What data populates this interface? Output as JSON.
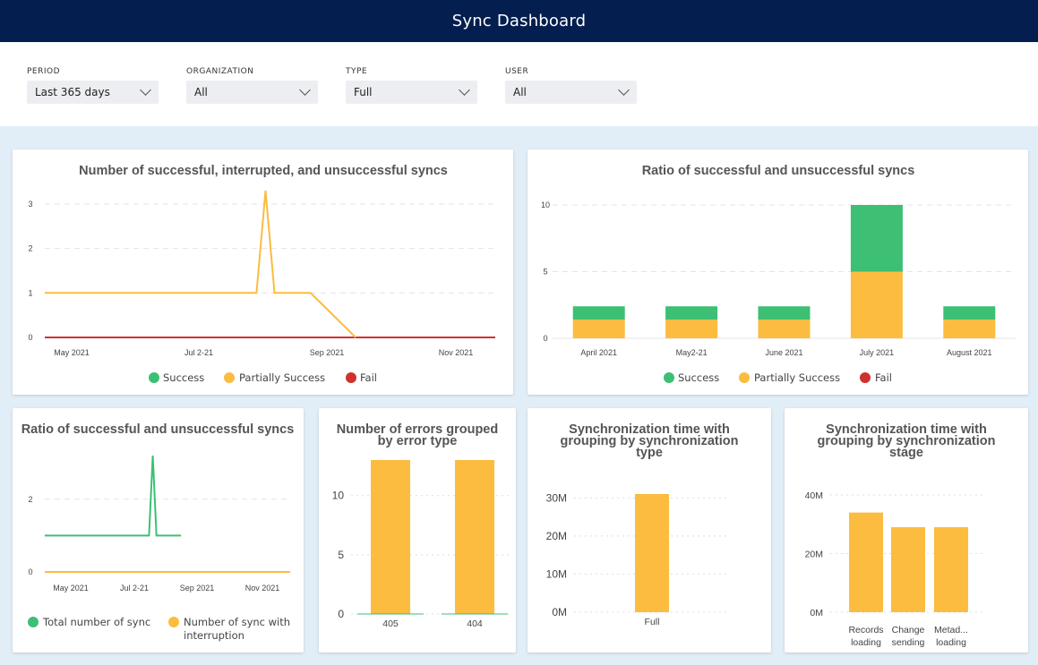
{
  "header": {
    "title": "Sync Dashboard"
  },
  "filters": [
    {
      "label": "PERIOD",
      "value": "Last 365 days"
    },
    {
      "label": "ORGANIZATION",
      "value": "All"
    },
    {
      "label": "TYPE",
      "value": "Full"
    },
    {
      "label": "USER",
      "value": "All"
    }
  ],
  "colors": {
    "success": "#3dbf74",
    "partial": "#fbbc3f",
    "fail": "#d0312d",
    "header": "#041e4f",
    "background": "#e2eef7"
  },
  "legends": {
    "success": "Success",
    "partial": "Partially Success",
    "fail": "Fail",
    "total": "Total number of sync",
    "interrupt_line1": "Number of sync with",
    "interrupt_line2": "interruption"
  },
  "chart_data": [
    {
      "type": "line",
      "title": "Number of successful, interrupted, and unsuccessful syncs",
      "x_ticks": [
        "May 2021",
        "Jul 2-21",
        "Sep 2021",
        "Nov 2021"
      ],
      "ylim": [
        0,
        3.3
      ],
      "y_ticks": [
        0,
        1,
        2,
        3
      ],
      "legend": "bottom",
      "series": [
        {
          "name": "Partially Success",
          "color": "#fbbc3f",
          "points": [
            [
              0,
              1
            ],
            [
              0.47,
              1
            ],
            [
              0.49,
              3.3
            ],
            [
              0.51,
              1
            ],
            [
              0.59,
              1
            ],
            [
              0.69,
              0
            ]
          ]
        },
        {
          "name": "Fail",
          "color": "#d0312d",
          "points": [
            [
              0,
              0
            ],
            [
              1,
              0
            ]
          ]
        }
      ]
    },
    {
      "type": "bar",
      "title": "Ratio of successful and unsuccessful syncs",
      "categories": [
        "April 2021",
        "May2-21",
        "June 2021",
        "July 2021",
        "August 2021"
      ],
      "ylim": [
        0,
        10
      ],
      "y_ticks": [
        0,
        5,
        10
      ],
      "legend": "bottom",
      "stacked": true,
      "series": [
        {
          "name": "Partially Success",
          "color": "#fbbc3f",
          "values": [
            1.4,
            1.4,
            1.4,
            5,
            1.4
          ]
        },
        {
          "name": "Success",
          "color": "#3dbf74",
          "values": [
            1.0,
            1.0,
            1.0,
            5,
            1.0
          ]
        }
      ]
    },
    {
      "type": "line",
      "title": "Ratio of successful and unsuccessful syncs",
      "x_ticks": [
        "May 2021",
        "Jul 2-21",
        "Sep 2021",
        "Nov 2021"
      ],
      "ylim": [
        0,
        3.2
      ],
      "y_ticks": [
        0,
        2
      ],
      "legend": "bottom",
      "series": [
        {
          "name": "Total number of sync",
          "color": "#3dbf74",
          "points": [
            [
              0,
              1
            ],
            [
              0.425,
              1
            ],
            [
              0.44,
              3.2
            ],
            [
              0.455,
              1
            ],
            [
              0.555,
              1
            ]
          ]
        },
        {
          "name": "Number of sync with interruption",
          "color": "#fbbc3f",
          "points": [
            [
              0,
              0
            ],
            [
              1,
              0
            ]
          ]
        }
      ]
    },
    {
      "type": "bar",
      "title_line1": "Number of errors grouped",
      "title_line2": "by error type",
      "categories": [
        "405",
        "404"
      ],
      "values": [
        13,
        13
      ],
      "ylim": [
        0,
        13
      ],
      "y_ticks": [
        0,
        5,
        10
      ]
    },
    {
      "type": "bar",
      "title_line1": "Synchronization time with",
      "title_line2": "grouping by synchronization",
      "title_line3": "type",
      "categories": [
        "Full"
      ],
      "values": [
        31000000
      ],
      "ylim": [
        0,
        31000000
      ],
      "y_ticks": [
        "0M",
        "10M",
        "20M",
        "30M"
      ]
    },
    {
      "type": "bar",
      "title_line1": "Synchronization time with",
      "title_line2": "grouping by synchronization",
      "title_line3": "stage",
      "categories": [
        [
          "Records",
          "loading"
        ],
        [
          "Change",
          "sending"
        ],
        [
          "Metad...",
          "loading"
        ]
      ],
      "values": [
        34000000,
        29000000,
        29000000
      ],
      "ylim": [
        0,
        40000000
      ],
      "y_ticks": [
        "0M",
        "20M",
        "40M"
      ]
    }
  ]
}
